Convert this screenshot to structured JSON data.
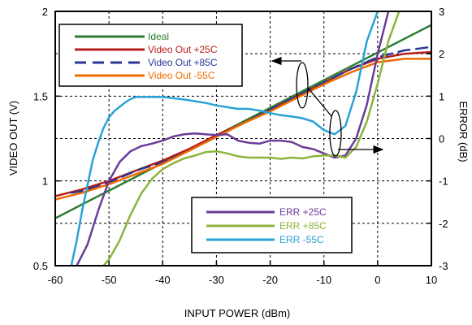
{
  "chart_data": {
    "type": "line",
    "xlabel": "INPUT POWER (dBm)",
    "ylabel_left": "VIDEO OUT (V)",
    "ylabel_right": "ERROR (dB)",
    "xlim": [
      -60,
      10
    ],
    "ylim_left": [
      0.5,
      2.0
    ],
    "ylim_right": [
      -3,
      3
    ],
    "xticks": [
      "-60",
      "-50",
      "-40",
      "-30",
      "-20",
      "-10",
      "0",
      "10"
    ],
    "yticks_left": [
      "0.5",
      "1",
      "1.5",
      "2"
    ],
    "yticks_right": [
      "-3",
      "-2",
      "-1",
      "0",
      "1",
      "2",
      "3"
    ],
    "grid": "dotted",
    "colors": {
      "ideal": "#2e7d32",
      "vout_25": "#b71c1c",
      "vout_85": "#283593",
      "vout_m55": "#ef6c00",
      "err_25": "#6a3d9a",
      "err_85": "#8cb43c",
      "err_m55": "#29a3d6"
    },
    "legend_top": {
      "placement": "top-left",
      "entries": [
        {
          "label": "Ideal",
          "color": "#2e7d32",
          "dash": false
        },
        {
          "label": "Video Out +25C",
          "color": "#b71c1c",
          "dash": false
        },
        {
          "label": "Video Out +85C",
          "color": "#283593",
          "dash": true
        },
        {
          "label": "Video Out  -55C",
          "color": "#ef6c00",
          "dash": false
        }
      ]
    },
    "legend_bottom": {
      "placement": "bottom-right",
      "entries": [
        {
          "label": "ERR +25C",
          "color": "#6a3d9a"
        },
        {
          "label": "ERR +85C",
          "color": "#8cb43c"
        },
        {
          "label": "ERR  -55C",
          "color": "#29a3d6"
        }
      ]
    },
    "series": [
      {
        "name": "Ideal",
        "axis": "left",
        "color": "#2e7d32",
        "dash": false,
        "x": [
          -60,
          10
        ],
        "y": [
          0.78,
          1.92
        ]
      },
      {
        "name": "Video Out +25C",
        "axis": "left",
        "color": "#b71c1c",
        "dash": false,
        "x": [
          -60,
          -55,
          -50,
          -45,
          -40,
          -35,
          -30,
          -25,
          -20,
          -15,
          -10,
          -5,
          0,
          5,
          10
        ],
        "y": [
          0.91,
          0.95,
          1.0,
          1.06,
          1.12,
          1.19,
          1.27,
          1.34,
          1.42,
          1.5,
          1.58,
          1.66,
          1.72,
          1.75,
          1.76
        ]
      },
      {
        "name": "Video Out +85C",
        "axis": "left",
        "color": "#283593",
        "dash": true,
        "x": [
          -57,
          -55,
          -50,
          -45,
          -40,
          -35,
          -30,
          -25,
          -20,
          -15,
          -10,
          -5,
          0,
          5,
          10
        ],
        "y": [
          0.93,
          0.94,
          0.99,
          1.06,
          1.11,
          1.18,
          1.26,
          1.34,
          1.42,
          1.5,
          1.58,
          1.66,
          1.73,
          1.77,
          1.79
        ]
      },
      {
        "name": "Video Out  -55C",
        "axis": "left",
        "color": "#ef6c00",
        "dash": false,
        "x": [
          -60,
          -55,
          -50,
          -45,
          -40,
          -35,
          -30,
          -25,
          -20,
          -15,
          -10,
          -5,
          0,
          5,
          10
        ],
        "y": [
          0.89,
          0.93,
          0.98,
          1.04,
          1.1,
          1.18,
          1.26,
          1.34,
          1.41,
          1.49,
          1.57,
          1.64,
          1.7,
          1.72,
          1.72
        ]
      },
      {
        "name": "ERR +25C",
        "axis": "right",
        "color": "#6a3d9a",
        "dash": false,
        "x": [
          -56,
          -54,
          -52,
          -50,
          -48,
          -46,
          -44,
          -42,
          -40,
          -38,
          -36,
          -34,
          -32,
          -30,
          -28,
          -26,
          -24,
          -22,
          -20,
          -18,
          -16,
          -14,
          -12,
          -10,
          -8,
          -6,
          -4,
          -2,
          0,
          2
        ],
        "y": [
          -3.0,
          -2.5,
          -1.7,
          -1.0,
          -0.55,
          -0.3,
          -0.18,
          -0.12,
          -0.05,
          0.05,
          0.1,
          0.12,
          0.1,
          0.08,
          0.1,
          -0.05,
          -0.1,
          -0.12,
          -0.05,
          -0.05,
          -0.08,
          -0.2,
          -0.25,
          -0.35,
          -0.45,
          -0.4,
          0.0,
          0.8,
          2.0,
          3.0
        ]
      },
      {
        "name": "ERR +85C",
        "axis": "right",
        "color": "#8cb43c",
        "dash": false,
        "x": [
          -51,
          -50,
          -48,
          -46,
          -44,
          -42,
          -40,
          -38,
          -36,
          -34,
          -32,
          -30,
          -28,
          -26,
          -24,
          -22,
          -20,
          -18,
          -16,
          -14,
          -12,
          -10,
          -8,
          -6,
          -4,
          -2,
          0,
          2,
          4
        ],
        "y": [
          -3.0,
          -2.85,
          -2.4,
          -1.8,
          -1.3,
          -0.95,
          -0.72,
          -0.58,
          -0.47,
          -0.4,
          -0.32,
          -0.3,
          -0.35,
          -0.42,
          -0.45,
          -0.45,
          -0.45,
          -0.48,
          -0.45,
          -0.47,
          -0.42,
          -0.4,
          -0.4,
          -0.45,
          -0.2,
          0.4,
          1.3,
          2.3,
          3.0
        ]
      },
      {
        "name": "ERR  -55C",
        "axis": "right",
        "color": "#29a3d6",
        "dash": false,
        "x": [
          -57,
          -56,
          -55,
          -54,
          -53,
          -52,
          -51,
          -50,
          -49,
          -48,
          -47,
          -46,
          -45,
          -44,
          -42,
          -40,
          -38,
          -36,
          -34,
          -32,
          -30,
          -28,
          -26,
          -24,
          -22,
          -20,
          -18,
          -16,
          -14,
          -12,
          -10,
          -8,
          -6,
          -4,
          -2,
          0
        ],
        "y": [
          -3.0,
          -2.4,
          -1.7,
          -1.1,
          -0.5,
          -0.1,
          0.25,
          0.5,
          0.65,
          0.75,
          0.85,
          0.93,
          0.98,
          0.98,
          0.98,
          0.98,
          0.95,
          0.92,
          0.88,
          0.84,
          0.78,
          0.74,
          0.7,
          0.7,
          0.66,
          0.6,
          0.55,
          0.52,
          0.48,
          0.4,
          0.2,
          0.1,
          0.3,
          1.1,
          2.3,
          3.0
        ]
      }
    ],
    "annotations": [
      {
        "type": "arrow-left",
        "target_axis": "left",
        "note": "Video Out curves read on left axis"
      },
      {
        "type": "arrow-right",
        "target_axis": "right",
        "note": "Error curves read on right axis"
      }
    ]
  }
}
